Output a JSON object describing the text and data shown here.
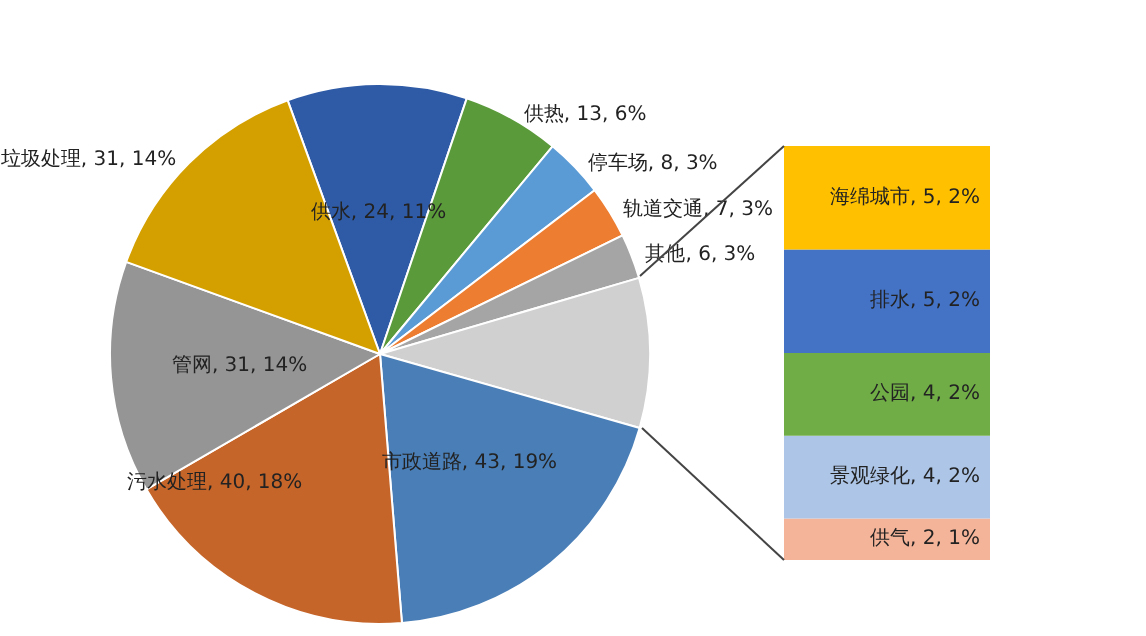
{
  "chart_data": [
    {
      "type": "pie",
      "categories": [
        "供水",
        "供热",
        "停车场",
        "轨道交通",
        "其他",
        null,
        "市政道路",
        "污水处理",
        "管网",
        "垃圾处理"
      ],
      "values": [
        24,
        13,
        8,
        7,
        6,
        20,
        43,
        40,
        31,
        31
      ],
      "colors": [
        "#2f5ba6",
        "#5a9a3a",
        "#5b9bd5",
        "#ed7d31",
        "#a5a5a5",
        "#d0d0d0",
        "#4a7eb6",
        "#c5652a",
        "#959595",
        "#d4a000"
      ],
      "value_labels": [
        ", 24, 11%",
        ", 13, 6%",
        ", 8, 3%",
        ", 7, 3%",
        ", 6, 3%",
        null,
        ", 43, 19%",
        ", 40, 18%",
        ", 31, 14%",
        ", 31, 14%"
      ]
    },
    {
      "type": "bar",
      "stacked": true,
      "categories": [
        null
      ],
      "tick_labels": false,
      "series": [
        {
          "name": "供气",
          "color": "#f4b49a",
          "values": [
            2
          ],
          "value_labels": [
            ", 2, 1%"
          ]
        },
        {
          "name": "景观绿化",
          "color": "#adc5e7",
          "values": [
            4
          ],
          "value_labels": [
            ", 4, 2%"
          ]
        },
        {
          "name": "公园",
          "color": "#70ad47",
          "values": [
            4
          ],
          "value_labels": [
            ", 4, 2%"
          ]
        },
        {
          "name": "排水",
          "color": "#4472c4",
          "values": [
            5
          ],
          "value_labels": [
            ", 5, 2%"
          ]
        },
        {
          "name": "海绵城市",
          "color": "#ffc000",
          "values": [
            5
          ],
          "value_labels": [
            ", 5, 2%"
          ]
        }
      ]
    }
  ]
}
